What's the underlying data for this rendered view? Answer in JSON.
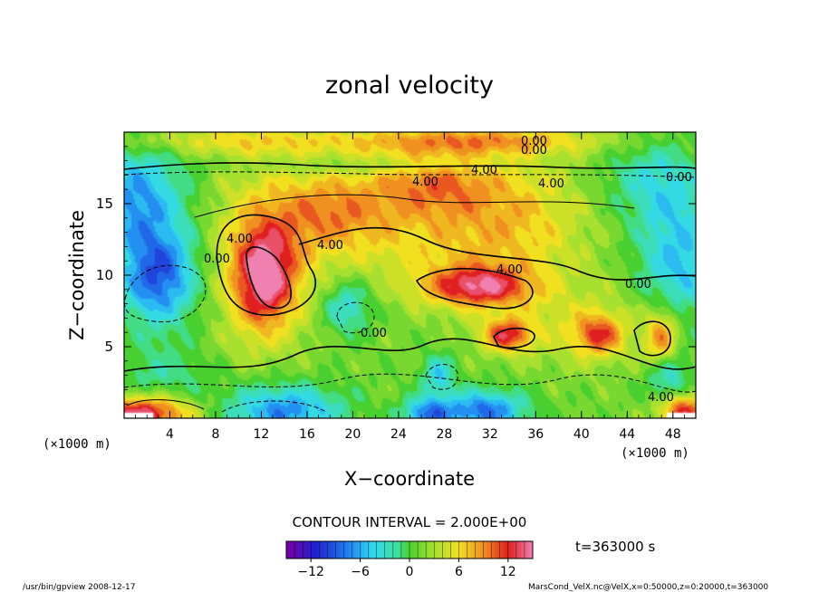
{
  "chart_data": {
    "type": "heatmap",
    "title": "zonal velocity",
    "xlabel": "X−coordinate",
    "ylabel": "Z−coordinate",
    "x_unit": "(×1000 m)",
    "y_unit": "(×1000 m)",
    "xlim": [
      0,
      50
    ],
    "ylim": [
      0,
      20
    ],
    "x_ticks": [
      4,
      8,
      12,
      16,
      20,
      24,
      28,
      32,
      36,
      40,
      44,
      48
    ],
    "y_ticks": [
      5,
      10,
      15
    ],
    "contour_interval_label": "CONTOUR INTERVAL = 2.000E+00",
    "contour_labels": [
      "0.00",
      "4.00",
      "4.00",
      "4.00",
      "0.00",
      "0.00",
      "4.00",
      "4.00",
      "0.00",
      "4.00",
      "0.00",
      "0.00",
      "4.00"
    ],
    "colorbar": {
      "range": [
        -15,
        15
      ],
      "tick_values": [
        -12,
        -6,
        0,
        6,
        12
      ],
      "tick_labels": [
        "−12",
        "−6",
        "0",
        "6",
        "12"
      ]
    },
    "time_label": "t=363000 s",
    "footer_left": "/usr/bin/gpview  2008-12-17",
    "footer_right": "MarsCond_VelX.nc@VelX,x=0:50000,z=0:20000,t=363000",
    "features": [
      {
        "x": 3.0,
        "z": 10.0,
        "sx": 2.4,
        "sz": 2.4,
        "value": -11
      },
      {
        "x": 1.0,
        "z": 15.5,
        "sx": 3.0,
        "sz": 2.5,
        "value": -8
      },
      {
        "x": 12.3,
        "z": 9.8,
        "sx": 1.8,
        "sz": 2.4,
        "value": 11
      },
      {
        "x": 31.0,
        "z": 9.2,
        "sx": 3.2,
        "sz": 1.0,
        "value": 11
      },
      {
        "x": 33.5,
        "z": 5.8,
        "sx": 1.5,
        "sz": 0.8,
        "value": 10
      },
      {
        "x": 41.5,
        "z": 5.8,
        "sx": 1.5,
        "sz": 1.0,
        "value": 8
      },
      {
        "x": 47.0,
        "z": 5.5,
        "sx": 1.0,
        "sz": 1.5,
        "value": 8
      },
      {
        "x": 19.5,
        "z": 7.8,
        "sx": 1.5,
        "sz": 1.3,
        "value": -6
      },
      {
        "x": 27.5,
        "z": 3.0,
        "sx": 1.0,
        "sz": 1.0,
        "value": -6
      },
      {
        "x": 31.5,
        "z": 0.5,
        "sx": 2.5,
        "sz": 1.0,
        "value": -10
      },
      {
        "x": 26.5,
        "z": 0.3,
        "sx": 1.5,
        "sz": 0.8,
        "value": -9
      },
      {
        "x": 14.0,
        "z": 0.5,
        "sx": 3.5,
        "sz": 1.3,
        "value": -9
      },
      {
        "x": 1.5,
        "z": 0.3,
        "sx": 3.0,
        "sz": 0.9,
        "value": 13
      },
      {
        "x": 49.0,
        "z": 0.5,
        "sx": 1.5,
        "sz": 0.8,
        "value": 11
      },
      {
        "x": 47.5,
        "z": 3.0,
        "sx": 1.2,
        "sz": 1.2,
        "value": -6
      },
      {
        "x": 3.5,
        "z": 3.0,
        "sx": 3.0,
        "sz": 1.5,
        "value": -3
      },
      {
        "x": 48.5,
        "z": 11.0,
        "sx": 2.5,
        "sz": 3.0,
        "value": -7
      },
      {
        "x": 46.5,
        "z": 16.5,
        "sx": 3.0,
        "sz": 2.0,
        "value": -5
      },
      {
        "x": 18.0,
        "z": 14.5,
        "sx": 3.5,
        "sz": 2.0,
        "value": 6
      },
      {
        "x": 28.0,
        "z": 13.0,
        "sx": 7.0,
        "sz": 3.0,
        "value": 5
      },
      {
        "x": 27.0,
        "z": 16.5,
        "sx": 4.0,
        "sz": 1.5,
        "value": 6
      },
      {
        "x": 35.0,
        "z": 14.0,
        "sx": 4.0,
        "sz": 3.5,
        "value": 3
      },
      {
        "x": 12.0,
        "z": 11.5,
        "sx": 3.5,
        "sz": 4.5,
        "value": 5
      },
      {
        "x": 30.0,
        "z": 19.4,
        "sx": 8.0,
        "sz": 0.7,
        "value": 7
      },
      {
        "x": 9.0,
        "z": 19.4,
        "sx": 8.0,
        "sz": 0.7,
        "value": 4
      },
      {
        "x": 20.0,
        "z": 17.6,
        "sx": 8.0,
        "sz": 0.4,
        "value": -2
      },
      {
        "x": 40.0,
        "z": 6.5,
        "sx": 5.0,
        "sz": 2.0,
        "value": 3
      }
    ]
  }
}
